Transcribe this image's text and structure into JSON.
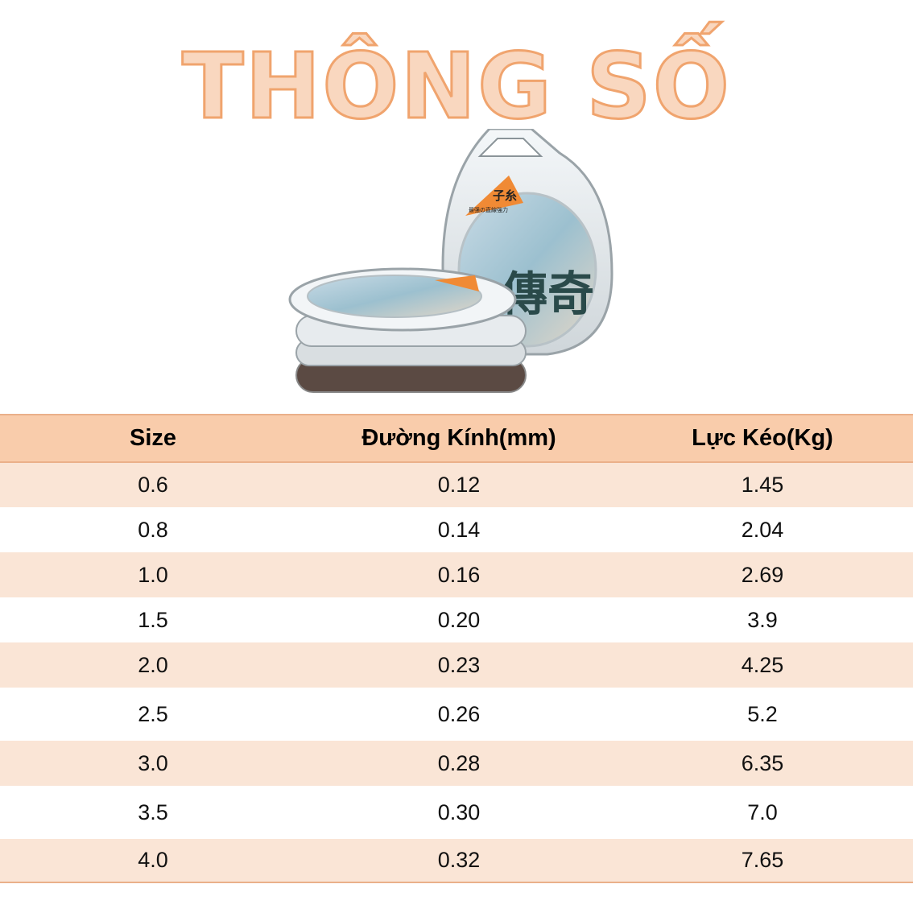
{
  "title": "THÔNG SỐ",
  "product": {
    "badge_text": "子糸",
    "badge_subtext": "最强の直線強力",
    "label_text": "傳奇",
    "icon": "fishing-line-spool-icon"
  },
  "colors": {
    "title_fill": "#f9d7bf",
    "title_stroke": "#f0a46e",
    "header_bg": "#f9ccab",
    "row_alt_bg": "#fae5d6",
    "border": "#eab08a"
  },
  "table": {
    "headers": [
      "Size",
      "Đường Kính(mm)",
      "Lực Kéo(Kg)"
    ],
    "rows": [
      [
        "0.6",
        "0.12",
        "1.45"
      ],
      [
        "0.8",
        "0.14",
        "2.04"
      ],
      [
        "1.0",
        "0.16",
        "2.69"
      ],
      [
        "1.5",
        "0.20",
        "3.9"
      ],
      [
        "2.0",
        "0.23",
        "4.25"
      ],
      [
        "2.5",
        "0.26",
        "5.2"
      ],
      [
        "3.0",
        "0.28",
        "6.35"
      ],
      [
        "3.5",
        "0.30",
        "7.0"
      ],
      [
        "4.0",
        "0.32",
        "7.65"
      ]
    ]
  }
}
